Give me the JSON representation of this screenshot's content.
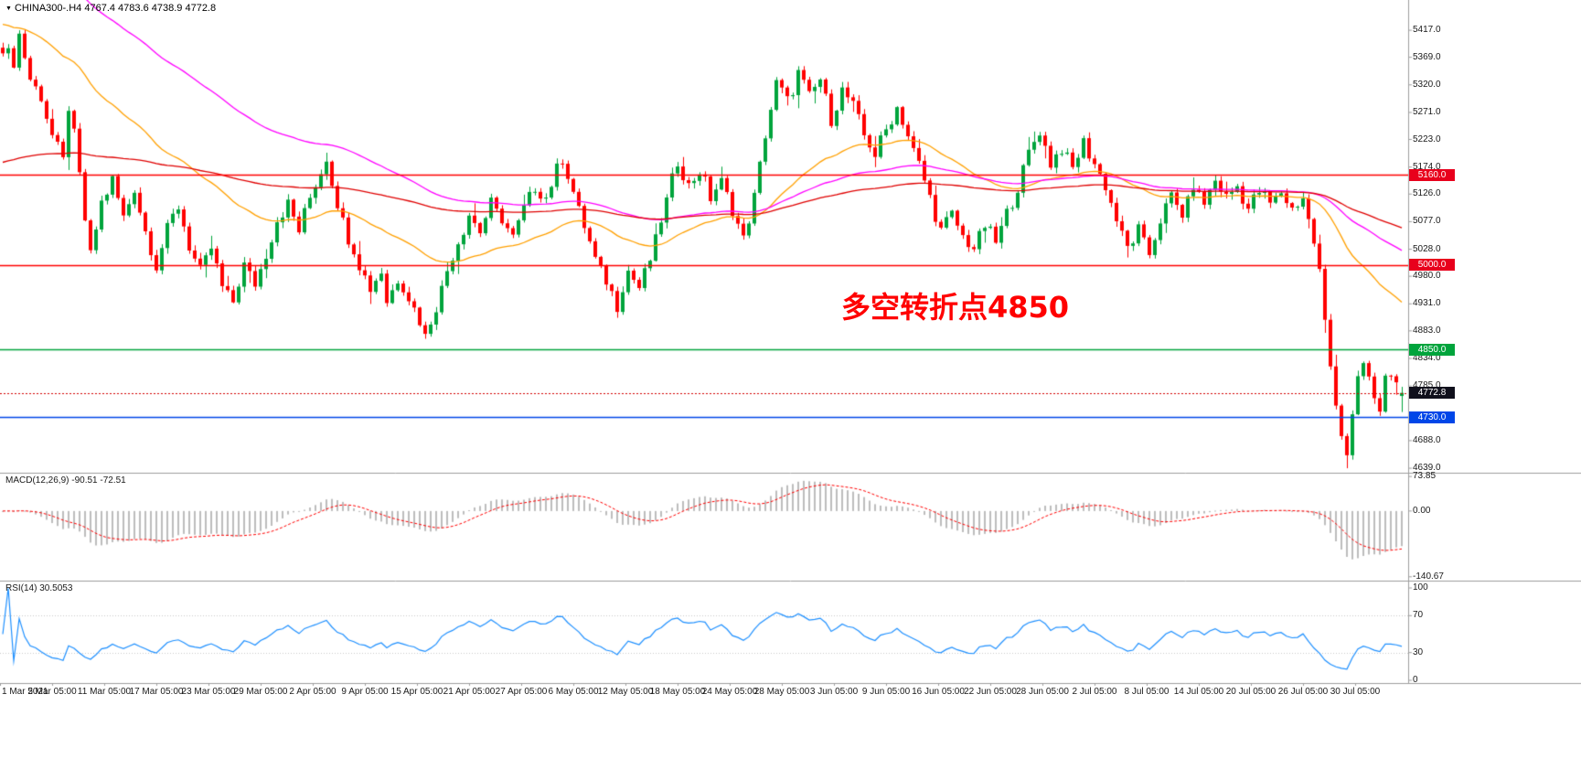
{
  "header": {
    "symbol_period": "CHINA300-.H4",
    "ohlc": "4767.4 4783.6 4738.9 4772.8",
    "open": "4767.4",
    "high": "4783.6",
    "low": "4738.9",
    "close": "4772.8"
  },
  "annotation": {
    "text": "多空转折点4850",
    "color": "#FF0000"
  },
  "colors": {
    "background": "#FFFFFF",
    "up_candle": "#00A43C",
    "down_candle": "#FF0000",
    "separator": "#9E9E9E",
    "axis_text": "#1A1A1A",
    "macd_bar": "#BDBDBD",
    "macd_signal": "#FF0000",
    "rsi_line": "#1E90FF",
    "rsi_level": "#C9C9C9"
  },
  "price_axis": {
    "ticks": [
      5417.0,
      5369.0,
      5320.0,
      5271.0,
      5223.0,
      5174.0,
      5126.0,
      5077.0,
      5028.0,
      4980.0,
      4931.0,
      4883.0,
      4834.0,
      4785.0,
      4688.0,
      4639.0
    ]
  },
  "hlines": [
    {
      "value": 5160.0,
      "label": "5160.0",
      "line_color": "#FF0000",
      "badge_color": "#E8001C"
    },
    {
      "value": 5000.0,
      "label": "5000.0",
      "line_color": "#FF0000",
      "badge_color": "#E8001C"
    },
    {
      "value": 4850.0,
      "label": "4850.0",
      "line_color": "#00A43C",
      "badge_color": "#00A43C"
    },
    {
      "value": 4730.0,
      "label": "4730.0",
      "line_color": "#0046E8",
      "badge_color": "#0046E8"
    }
  ],
  "current_price": {
    "value": 4772.8,
    "label": "4772.8",
    "badge_color": "#10101C",
    "line_color": "#D40000"
  },
  "time_axis": {
    "labels": [
      "1 Mar 2021",
      "5 Mar 05:00",
      "11 Mar 05:00",
      "17 Mar 05:00",
      "23 Mar 05:00",
      "29 Mar 05:00",
      "2 Apr 05:00",
      "9 Apr 05:00",
      "15 Apr 05:00",
      "21 Apr 05:00",
      "27 Apr 05:00",
      "6 May 05:00",
      "12 May 05:00",
      "18 May 05:00",
      "24 May 05:00",
      "28 May 05:00",
      "3 Jun 05:00",
      "9 Jun 05:00",
      "16 Jun 05:00",
      "22 Jun 05:00",
      "28 Jun 05:00",
      "2 Jul 05:00",
      "8 Jul 05:00",
      "14 Jul 05:00",
      "20 Jul 05:00",
      "26 Jul 05:00",
      "30 Jul 05:00"
    ]
  },
  "chart_data": {
    "type": "candlestick",
    "symbol": "CHINA300-",
    "timeframe": "H4",
    "num_candles": 256,
    "price_range": [
      4631,
      5448
    ],
    "price_path": [
      [
        0,
        5385
      ],
      [
        2,
        5360
      ],
      [
        3,
        5412
      ],
      [
        5,
        5330
      ],
      [
        7,
        5300
      ],
      [
        9,
        5230
      ],
      [
        11,
        5185
      ],
      [
        12,
        5280
      ],
      [
        13,
        5230
      ],
      [
        15,
        5080
      ],
      [
        16,
        5020
      ],
      [
        18,
        5110
      ],
      [
        20,
        5150
      ],
      [
        22,
        5085
      ],
      [
        24,
        5135
      ],
      [
        26,
        5060
      ],
      [
        28,
        5000
      ],
      [
        30,
        5065
      ],
      [
        32,
        5105
      ],
      [
        34,
        5035
      ],
      [
        36,
        4985
      ],
      [
        38,
        5030
      ],
      [
        40,
        4960
      ],
      [
        42,
        4935
      ],
      [
        44,
        5000
      ],
      [
        46,
        4965
      ],
      [
        48,
        5020
      ],
      [
        50,
        5080
      ],
      [
        52,
        5110
      ],
      [
        54,
        5060
      ],
      [
        56,
        5120
      ],
      [
        58,
        5165
      ],
      [
        59,
        5190
      ],
      [
        61,
        5110
      ],
      [
        63,
        5050
      ],
      [
        65,
        5000
      ],
      [
        67,
        4960
      ],
      [
        69,
        4990
      ],
      [
        70,
        4935
      ],
      [
        72,
        4975
      ],
      [
        74,
        4945
      ],
      [
        76,
        4900
      ],
      [
        77,
        4872
      ],
      [
        79,
        4930
      ],
      [
        81,
        4990
      ],
      [
        83,
        5040
      ],
      [
        85,
        5090
      ],
      [
        87,
        5060
      ],
      [
        89,
        5110
      ],
      [
        91,
        5080
      ],
      [
        93,
        5050
      ],
      [
        95,
        5100
      ],
      [
        97,
        5140
      ],
      [
        99,
        5120
      ],
      [
        101,
        5170
      ],
      [
        102,
        5190
      ],
      [
        104,
        5130
      ],
      [
        106,
        5070
      ],
      [
        108,
        5010
      ],
      [
        110,
        4970
      ],
      [
        112,
        4930
      ],
      [
        114,
        4990
      ],
      [
        116,
        4960
      ],
      [
        118,
        5010
      ],
      [
        120,
        5080
      ],
      [
        122,
        5150
      ],
      [
        123,
        5180
      ],
      [
        125,
        5140
      ],
      [
        127,
        5170
      ],
      [
        129,
        5120
      ],
      [
        131,
        5150
      ],
      [
        133,
        5100
      ],
      [
        135,
        5045
      ],
      [
        137,
        5120
      ],
      [
        139,
        5230
      ],
      [
        141,
        5325
      ],
      [
        143,
        5290
      ],
      [
        145,
        5340
      ],
      [
        147,
        5300
      ],
      [
        149,
        5330
      ],
      [
        151,
        5260
      ],
      [
        153,
        5310
      ],
      [
        155,
        5285
      ],
      [
        157,
        5230
      ],
      [
        159,
        5195
      ],
      [
        161,
        5240
      ],
      [
        163,
        5280
      ],
      [
        165,
        5230
      ],
      [
        167,
        5180
      ],
      [
        169,
        5120
      ],
      [
        171,
        5060
      ],
      [
        173,
        5090
      ],
      [
        175,
        5050
      ],
      [
        177,
        5030
      ],
      [
        179,
        5070
      ],
      [
        181,
        5040
      ],
      [
        183,
        5090
      ],
      [
        185,
        5140
      ],
      [
        187,
        5200
      ],
      [
        189,
        5240
      ],
      [
        191,
        5180
      ],
      [
        193,
        5210
      ],
      [
        195,
        5170
      ],
      [
        197,
        5220
      ],
      [
        199,
        5180
      ],
      [
        201,
        5140
      ],
      [
        203,
        5080
      ],
      [
        205,
        5030
      ],
      [
        207,
        5060
      ],
      [
        209,
        5020
      ],
      [
        211,
        5080
      ],
      [
        213,
        5120
      ],
      [
        215,
        5090
      ],
      [
        217,
        5140
      ],
      [
        219,
        5110
      ],
      [
        221,
        5150
      ],
      [
        223,
        5120
      ],
      [
        225,
        5140
      ],
      [
        227,
        5100
      ],
      [
        229,
        5130
      ],
      [
        231,
        5110
      ],
      [
        233,
        5130
      ],
      [
        235,
        5100
      ],
      [
        237,
        5120
      ],
      [
        238,
        5080
      ],
      [
        239,
        5040
      ],
      [
        240,
        4990
      ],
      [
        241,
        4900
      ],
      [
        242,
        4820
      ],
      [
        243,
        4760
      ],
      [
        244,
        4700
      ],
      [
        245,
        4665
      ],
      [
        246,
        4730
      ],
      [
        247,
        4790
      ],
      [
        248,
        4825
      ],
      [
        249,
        4800
      ],
      [
        250,
        4755
      ],
      [
        251,
        4745
      ],
      [
        252,
        4800
      ],
      [
        253,
        4808
      ],
      [
        254,
        4780
      ],
      [
        255,
        4772.8
      ]
    ],
    "key_points": {
      "absolute_high": 5417.0,
      "absolute_low": 4639.0,
      "last_ohlc": {
        "o": 4767.4,
        "h": 4783.6,
        "l": 4738.9,
        "c": 4772.8
      }
    },
    "moving_averages": [
      {
        "name": "ma-fast-orange",
        "period": 40,
        "seed": 5430,
        "color": "#FFA000"
      },
      {
        "name": "ma-mid-magenta",
        "period": 90,
        "seed": 5560,
        "color": "#FF00FF"
      },
      {
        "name": "ma-slow-red",
        "period": 160,
        "seed": 5180,
        "color": "#E00000"
      }
    ],
    "macd": {
      "display": "MACD(12,26,9) -90.51 -72.51",
      "fast": 12,
      "slow": 26,
      "signal_period": 9,
      "macd_value": -90.51,
      "signal_value": -72.51,
      "axis_ticks": [
        {
          "v": 73.85,
          "label": "73.85"
        },
        {
          "v": 0,
          "label": "0.00"
        },
        {
          "v": -140.67,
          "label": "-140.67"
        }
      ],
      "range": [
        -145,
        78
      ]
    },
    "rsi": {
      "display": "RSI(14) 30.5053",
      "period": 14,
      "value": 30.5053,
      "axis_ticks": [
        {
          "v": 100,
          "label": "100"
        },
        {
          "v": 70,
          "label": "70"
        },
        {
          "v": 30,
          "label": "30"
        },
        {
          "v": 0,
          "label": "0"
        }
      ],
      "levels": [
        70,
        30
      ],
      "range": [
        0,
        100
      ]
    }
  }
}
